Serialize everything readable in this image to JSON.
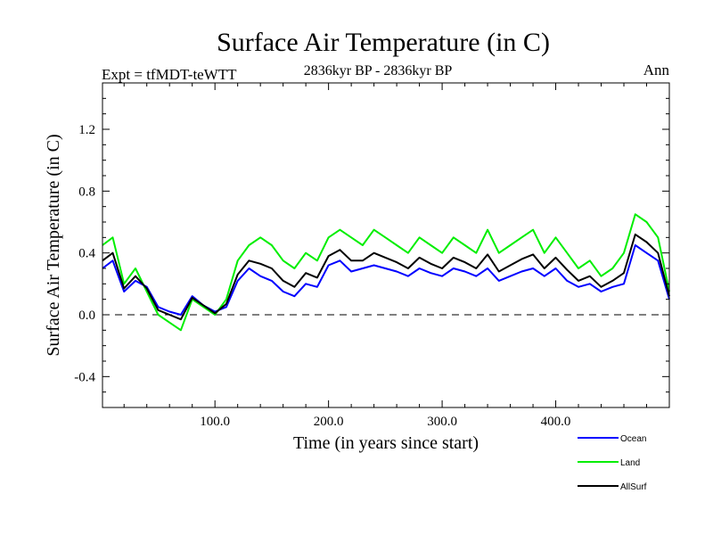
{
  "header": {
    "title": "Surface Air Temperature (in C)",
    "experiment": "Expt = tfMDT-teWTT",
    "period": "2836kyr BP - 2836kyr BP",
    "season": "Ann"
  },
  "chart_data": {
    "type": "line",
    "title": "Surface Air Temperature (in C)",
    "xlabel": "Time (in years since start)",
    "ylabel": "Surface Air Temperature (in C)",
    "xlim": [
      1,
      500
    ],
    "ylim": [
      -0.6,
      1.5
    ],
    "xticks": [
      100,
      200,
      300,
      400
    ],
    "xtick_labels": [
      "100.0",
      "200.0",
      "300.0",
      "400.0"
    ],
    "yticks": [
      -0.4,
      0.0,
      0.4,
      0.8,
      1.2
    ],
    "ytick_labels": [
      "-0.4",
      "0.0",
      "0.4",
      "0.8",
      "1.2"
    ],
    "zero_line": 0.0,
    "grid": false,
    "legend_position": "bottom-right",
    "series": [
      {
        "name": "Ocean",
        "color": "#0000ff",
        "x": [
          1,
          10,
          20,
          30,
          40,
          50,
          60,
          70,
          80,
          90,
          100,
          110,
          120,
          130,
          140,
          150,
          160,
          170,
          180,
          190,
          200,
          210,
          220,
          230,
          240,
          250,
          260,
          270,
          280,
          290,
          300,
          310,
          320,
          330,
          340,
          350,
          360,
          370,
          380,
          390,
          400,
          410,
          420,
          430,
          440,
          450,
          460,
          470,
          480,
          490,
          500
        ],
        "values": [
          0.3,
          0.35,
          0.15,
          0.22,
          0.18,
          0.05,
          0.02,
          0.0,
          0.12,
          0.06,
          0.02,
          0.05,
          0.22,
          0.3,
          0.25,
          0.22,
          0.15,
          0.12,
          0.2,
          0.18,
          0.32,
          0.35,
          0.28,
          0.3,
          0.32,
          0.3,
          0.28,
          0.25,
          0.3,
          0.27,
          0.25,
          0.3,
          0.28,
          0.25,
          0.3,
          0.22,
          0.25,
          0.28,
          0.3,
          0.25,
          0.3,
          0.22,
          0.18,
          0.2,
          0.15,
          0.18,
          0.2,
          0.45,
          0.4,
          0.35,
          0.1
        ]
      },
      {
        "name": "Land",
        "color": "#00ee00",
        "x": [
          1,
          10,
          20,
          30,
          40,
          50,
          60,
          70,
          80,
          90,
          100,
          110,
          120,
          130,
          140,
          150,
          160,
          170,
          180,
          190,
          200,
          210,
          220,
          230,
          240,
          250,
          260,
          270,
          280,
          290,
          300,
          310,
          320,
          330,
          340,
          350,
          360,
          370,
          380,
          390,
          400,
          410,
          420,
          430,
          440,
          450,
          460,
          470,
          480,
          490,
          500
        ],
        "values": [
          0.45,
          0.5,
          0.2,
          0.3,
          0.15,
          0.0,
          -0.05,
          -0.1,
          0.1,
          0.05,
          0.0,
          0.1,
          0.35,
          0.45,
          0.5,
          0.45,
          0.35,
          0.3,
          0.4,
          0.35,
          0.5,
          0.55,
          0.5,
          0.45,
          0.55,
          0.5,
          0.45,
          0.4,
          0.5,
          0.45,
          0.4,
          0.5,
          0.45,
          0.4,
          0.55,
          0.4,
          0.45,
          0.5,
          0.55,
          0.4,
          0.5,
          0.4,
          0.3,
          0.35,
          0.25,
          0.3,
          0.4,
          0.65,
          0.6,
          0.5,
          0.15
        ]
      },
      {
        "name": "AllSurf",
        "color": "#000000",
        "x": [
          1,
          10,
          20,
          30,
          40,
          50,
          60,
          70,
          80,
          90,
          100,
          110,
          120,
          130,
          140,
          150,
          160,
          170,
          180,
          190,
          200,
          210,
          220,
          230,
          240,
          250,
          260,
          270,
          280,
          290,
          300,
          310,
          320,
          330,
          340,
          350,
          360,
          370,
          380,
          390,
          400,
          410,
          420,
          430,
          440,
          450,
          460,
          470,
          480,
          490,
          500
        ],
        "values": [
          0.35,
          0.4,
          0.17,
          0.25,
          0.17,
          0.03,
          0.0,
          -0.03,
          0.11,
          0.06,
          0.01,
          0.07,
          0.26,
          0.35,
          0.33,
          0.3,
          0.22,
          0.18,
          0.27,
          0.24,
          0.38,
          0.42,
          0.35,
          0.35,
          0.4,
          0.37,
          0.34,
          0.3,
          0.37,
          0.33,
          0.3,
          0.37,
          0.34,
          0.3,
          0.39,
          0.28,
          0.32,
          0.36,
          0.39,
          0.3,
          0.37,
          0.29,
          0.22,
          0.25,
          0.18,
          0.22,
          0.27,
          0.52,
          0.47,
          0.4,
          0.12
        ]
      }
    ]
  }
}
